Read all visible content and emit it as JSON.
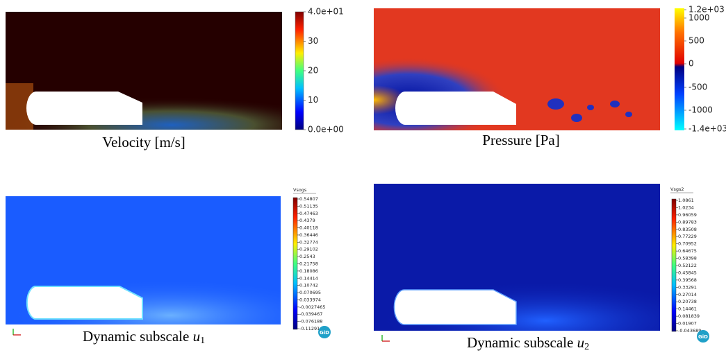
{
  "panels": [
    {
      "caption": "Velocity [m/s]",
      "colorbar": {
        "labels": [
          "4.0e+01",
          "30",
          "20",
          "10",
          "0.0e+00"
        ]
      }
    },
    {
      "caption": "Pressure [Pa]",
      "colorbar": {
        "labels": [
          "1.2e+03",
          "1000",
          "500",
          "0",
          "-500",
          "-1000",
          "-1.4e+03"
        ]
      }
    },
    {
      "caption": "Dynamic subscale",
      "variable": "u",
      "subscript": "1",
      "logo": "GiD",
      "colorbar": {
        "title": "Vsogs",
        "labels": [
          "0.54807",
          "0.51135",
          "0.47463",
          "0.4379",
          "0.40118",
          "0.36446",
          "0.32774",
          "0.29102",
          "0.2543",
          "0.21758",
          "0.18086",
          "0.14414",
          "0.10742",
          "0.070695",
          "0.033974",
          "-0.0027465",
          "-0.039467",
          "-0.076188",
          "-0.11291"
        ]
      }
    },
    {
      "caption": "Dynamic subscale",
      "variable": "u",
      "subscript": "2",
      "logo": "GiD",
      "colorbar": {
        "title": "Vsgs2",
        "labels": [
          "1.0861",
          "1.0234",
          "0.96059",
          "0.89783",
          "0.83508",
          "0.77229",
          "0.70952",
          "0.64675",
          "0.58398",
          "0.52122",
          "0.45845",
          "0.39568",
          "0.33291",
          "0.27014",
          "0.20738",
          "0.14461",
          "0.081839",
          "0.01907",
          "-0.043689"
        ]
      }
    }
  ]
}
